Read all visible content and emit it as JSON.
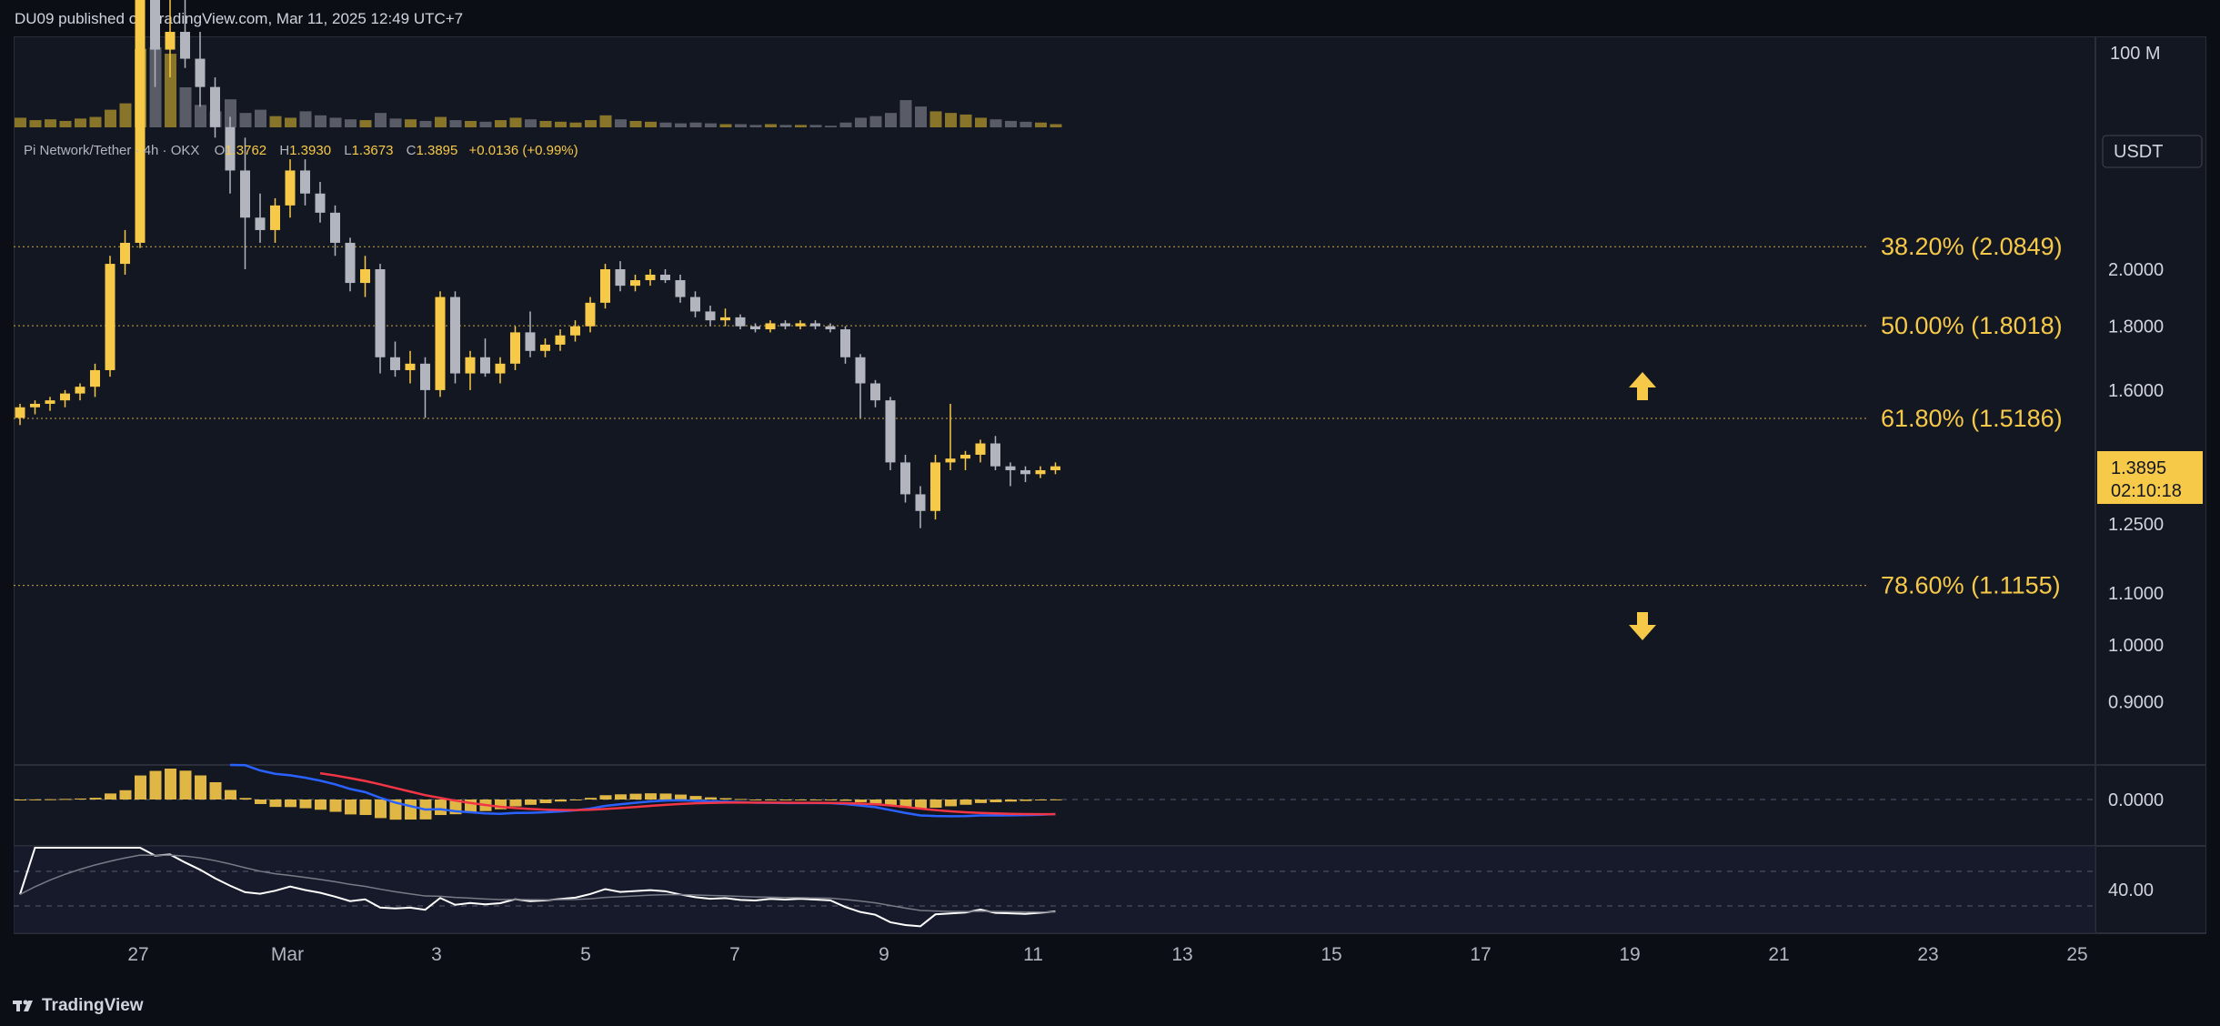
{
  "header": {
    "publisher_line": "DU09 published on TradingView.com, Mar 11, 2025 12:49 UTC+7"
  },
  "footer": {
    "brand": "TradingView"
  },
  "legend": {
    "symbol": "Pi Network/Tether · 4h · OKX",
    "open_label": "O",
    "open": "1.3762",
    "high_label": "H",
    "high": "1.3930",
    "low_label": "L",
    "low": "1.3673",
    "close_label": "C",
    "close": "1.3895",
    "change": "+0.0136 (+0.99%)"
  },
  "colors": {
    "up": "#f7c948",
    "down": "#b2b5be",
    "fib": "#f7c948",
    "macd": "#2962ff",
    "signal": "#f23645",
    "rsi": "#ffffff",
    "rsi_ma": "#787b86"
  },
  "price_axis": {
    "currency": "USDT",
    "volume_tick": "100 M",
    "ticks": [
      "2.0000",
      "1.8000",
      "1.6000",
      "1.2500",
      "1.1000",
      "1.0000",
      "0.9000"
    ],
    "macd_tick": "0.0000",
    "rsi_tick": "40.00",
    "last_price": "1.3895",
    "countdown": "02:10:18"
  },
  "chart_data": {
    "type": "candlestick",
    "title": "Pi Network/Tether · 4h · OKX",
    "scale": "log",
    "x_axis": {
      "ticks": [
        "27",
        "Mar",
        "3",
        "5",
        "7",
        "9",
        "11",
        "13",
        "15",
        "17",
        "19",
        "21",
        "23",
        "25"
      ]
    },
    "ylim": [
      0.82,
      3.2
    ],
    "fib_levels": [
      {
        "label": "38.20% (2.0849)",
        "value": 2.0849
      },
      {
        "label": "50.00% (1.8018)",
        "value": 1.8018
      },
      {
        "label": "61.80% (1.5186)",
        "value": 1.5186
      },
      {
        "label": "78.60% (1.1155)",
        "value": 1.1155
      }
    ],
    "annotations": [
      {
        "type": "arrow-up",
        "near_value": 1.6
      },
      {
        "type": "arrow-down",
        "near_value": 1.02
      }
    ],
    "candles_ohlc": [
      [
        1.52,
        1.56,
        1.5,
        1.55
      ],
      [
        1.55,
        1.57,
        1.53,
        1.56
      ],
      [
        1.56,
        1.58,
        1.54,
        1.57
      ],
      [
        1.57,
        1.6,
        1.55,
        1.59
      ],
      [
        1.59,
        1.62,
        1.57,
        1.61
      ],
      [
        1.61,
        1.68,
        1.58,
        1.66
      ],
      [
        1.66,
        2.05,
        1.64,
        2.02
      ],
      [
        2.02,
        2.15,
        1.98,
        2.1
      ],
      [
        2.1,
        3.6,
        2.08,
        3.3
      ],
      [
        3.3,
        3.9,
        2.8,
        3.0
      ],
      [
        3.0,
        3.3,
        2.85,
        3.1
      ],
      [
        3.1,
        3.35,
        2.9,
        2.95
      ],
      [
        2.95,
        3.1,
        2.7,
        2.8
      ],
      [
        2.8,
        2.85,
        2.55,
        2.6
      ],
      [
        2.6,
        2.65,
        2.3,
        2.4
      ],
      [
        2.4,
        2.55,
        2.0,
        2.2
      ],
      [
        2.2,
        2.3,
        2.1,
        2.15
      ],
      [
        2.15,
        2.28,
        2.1,
        2.25
      ],
      [
        2.25,
        2.45,
        2.2,
        2.4
      ],
      [
        2.4,
        2.45,
        2.25,
        2.3
      ],
      [
        2.3,
        2.35,
        2.18,
        2.22
      ],
      [
        2.22,
        2.25,
        2.05,
        2.1
      ],
      [
        2.1,
        2.12,
        1.92,
        1.95
      ],
      [
        1.95,
        2.05,
        1.9,
        2.0
      ],
      [
        2.0,
        2.02,
        1.65,
        1.7
      ],
      [
        1.7,
        1.75,
        1.64,
        1.66
      ],
      [
        1.66,
        1.72,
        1.62,
        1.68
      ],
      [
        1.68,
        1.7,
        1.52,
        1.6
      ],
      [
        1.6,
        1.92,
        1.58,
        1.9
      ],
      [
        1.9,
        1.92,
        1.62,
        1.65
      ],
      [
        1.65,
        1.72,
        1.6,
        1.7
      ],
      [
        1.7,
        1.76,
        1.64,
        1.65
      ],
      [
        1.65,
        1.7,
        1.62,
        1.68
      ],
      [
        1.68,
        1.8,
        1.66,
        1.78
      ],
      [
        1.78,
        1.85,
        1.7,
        1.72
      ],
      [
        1.72,
        1.76,
        1.7,
        1.74
      ],
      [
        1.74,
        1.79,
        1.72,
        1.77
      ],
      [
        1.77,
        1.82,
        1.75,
        1.8
      ],
      [
        1.8,
        1.9,
        1.78,
        1.88
      ],
      [
        1.88,
        2.02,
        1.86,
        2.0
      ],
      [
        2.0,
        2.03,
        1.92,
        1.94
      ],
      [
        1.94,
        1.98,
        1.92,
        1.96
      ],
      [
        1.96,
        2.0,
        1.94,
        1.98
      ],
      [
        1.98,
        2.0,
        1.95,
        1.96
      ],
      [
        1.96,
        1.98,
        1.88,
        1.9
      ],
      [
        1.9,
        1.92,
        1.83,
        1.85
      ],
      [
        1.85,
        1.87,
        1.8,
        1.82
      ],
      [
        1.82,
        1.86,
        1.8,
        1.83
      ],
      [
        1.83,
        1.84,
        1.79,
        1.8
      ],
      [
        1.8,
        1.81,
        1.78,
        1.79
      ],
      [
        1.79,
        1.82,
        1.78,
        1.81
      ],
      [
        1.81,
        1.82,
        1.79,
        1.8
      ],
      [
        1.8,
        1.82,
        1.79,
        1.81
      ],
      [
        1.81,
        1.82,
        1.79,
        1.8
      ],
      [
        1.8,
        1.81,
        1.78,
        1.79
      ],
      [
        1.79,
        1.8,
        1.68,
        1.7
      ],
      [
        1.7,
        1.71,
        1.52,
        1.62
      ],
      [
        1.62,
        1.63,
        1.55,
        1.57
      ],
      [
        1.57,
        1.58,
        1.38,
        1.4
      ],
      [
        1.4,
        1.42,
        1.3,
        1.32
      ],
      [
        1.32,
        1.34,
        1.24,
        1.28
      ],
      [
        1.28,
        1.42,
        1.26,
        1.4
      ],
      [
        1.4,
        1.56,
        1.38,
        1.41
      ],
      [
        1.41,
        1.43,
        1.38,
        1.42
      ],
      [
        1.42,
        1.46,
        1.4,
        1.45
      ],
      [
        1.45,
        1.47,
        1.38,
        1.39
      ],
      [
        1.39,
        1.4,
        1.34,
        1.38
      ],
      [
        1.38,
        1.39,
        1.35,
        1.37
      ],
      [
        1.37,
        1.39,
        1.36,
        1.38
      ],
      [
        1.38,
        1.4,
        1.37,
        1.39
      ]
    ],
    "volume": [
      12,
      9,
      10,
      8,
      11,
      13,
      22,
      30,
      98,
      100,
      92,
      50,
      28,
      20,
      35,
      18,
      22,
      14,
      12,
      20,
      15,
      12,
      10,
      9,
      18,
      11,
      10,
      8,
      13,
      9,
      8,
      7,
      9,
      12,
      10,
      8,
      7,
      6,
      9,
      15,
      10,
      8,
      7,
      6,
      5,
      6,
      5,
      4,
      4,
      3,
      4,
      3,
      3,
      3,
      2,
      6,
      12,
      14,
      18,
      34,
      26,
      20,
      18,
      16,
      12,
      10,
      8,
      7,
      6,
      4
    ],
    "macd": {
      "zero_label": "0.0000"
    },
    "rsi": {
      "tick_label": "40.00"
    }
  }
}
